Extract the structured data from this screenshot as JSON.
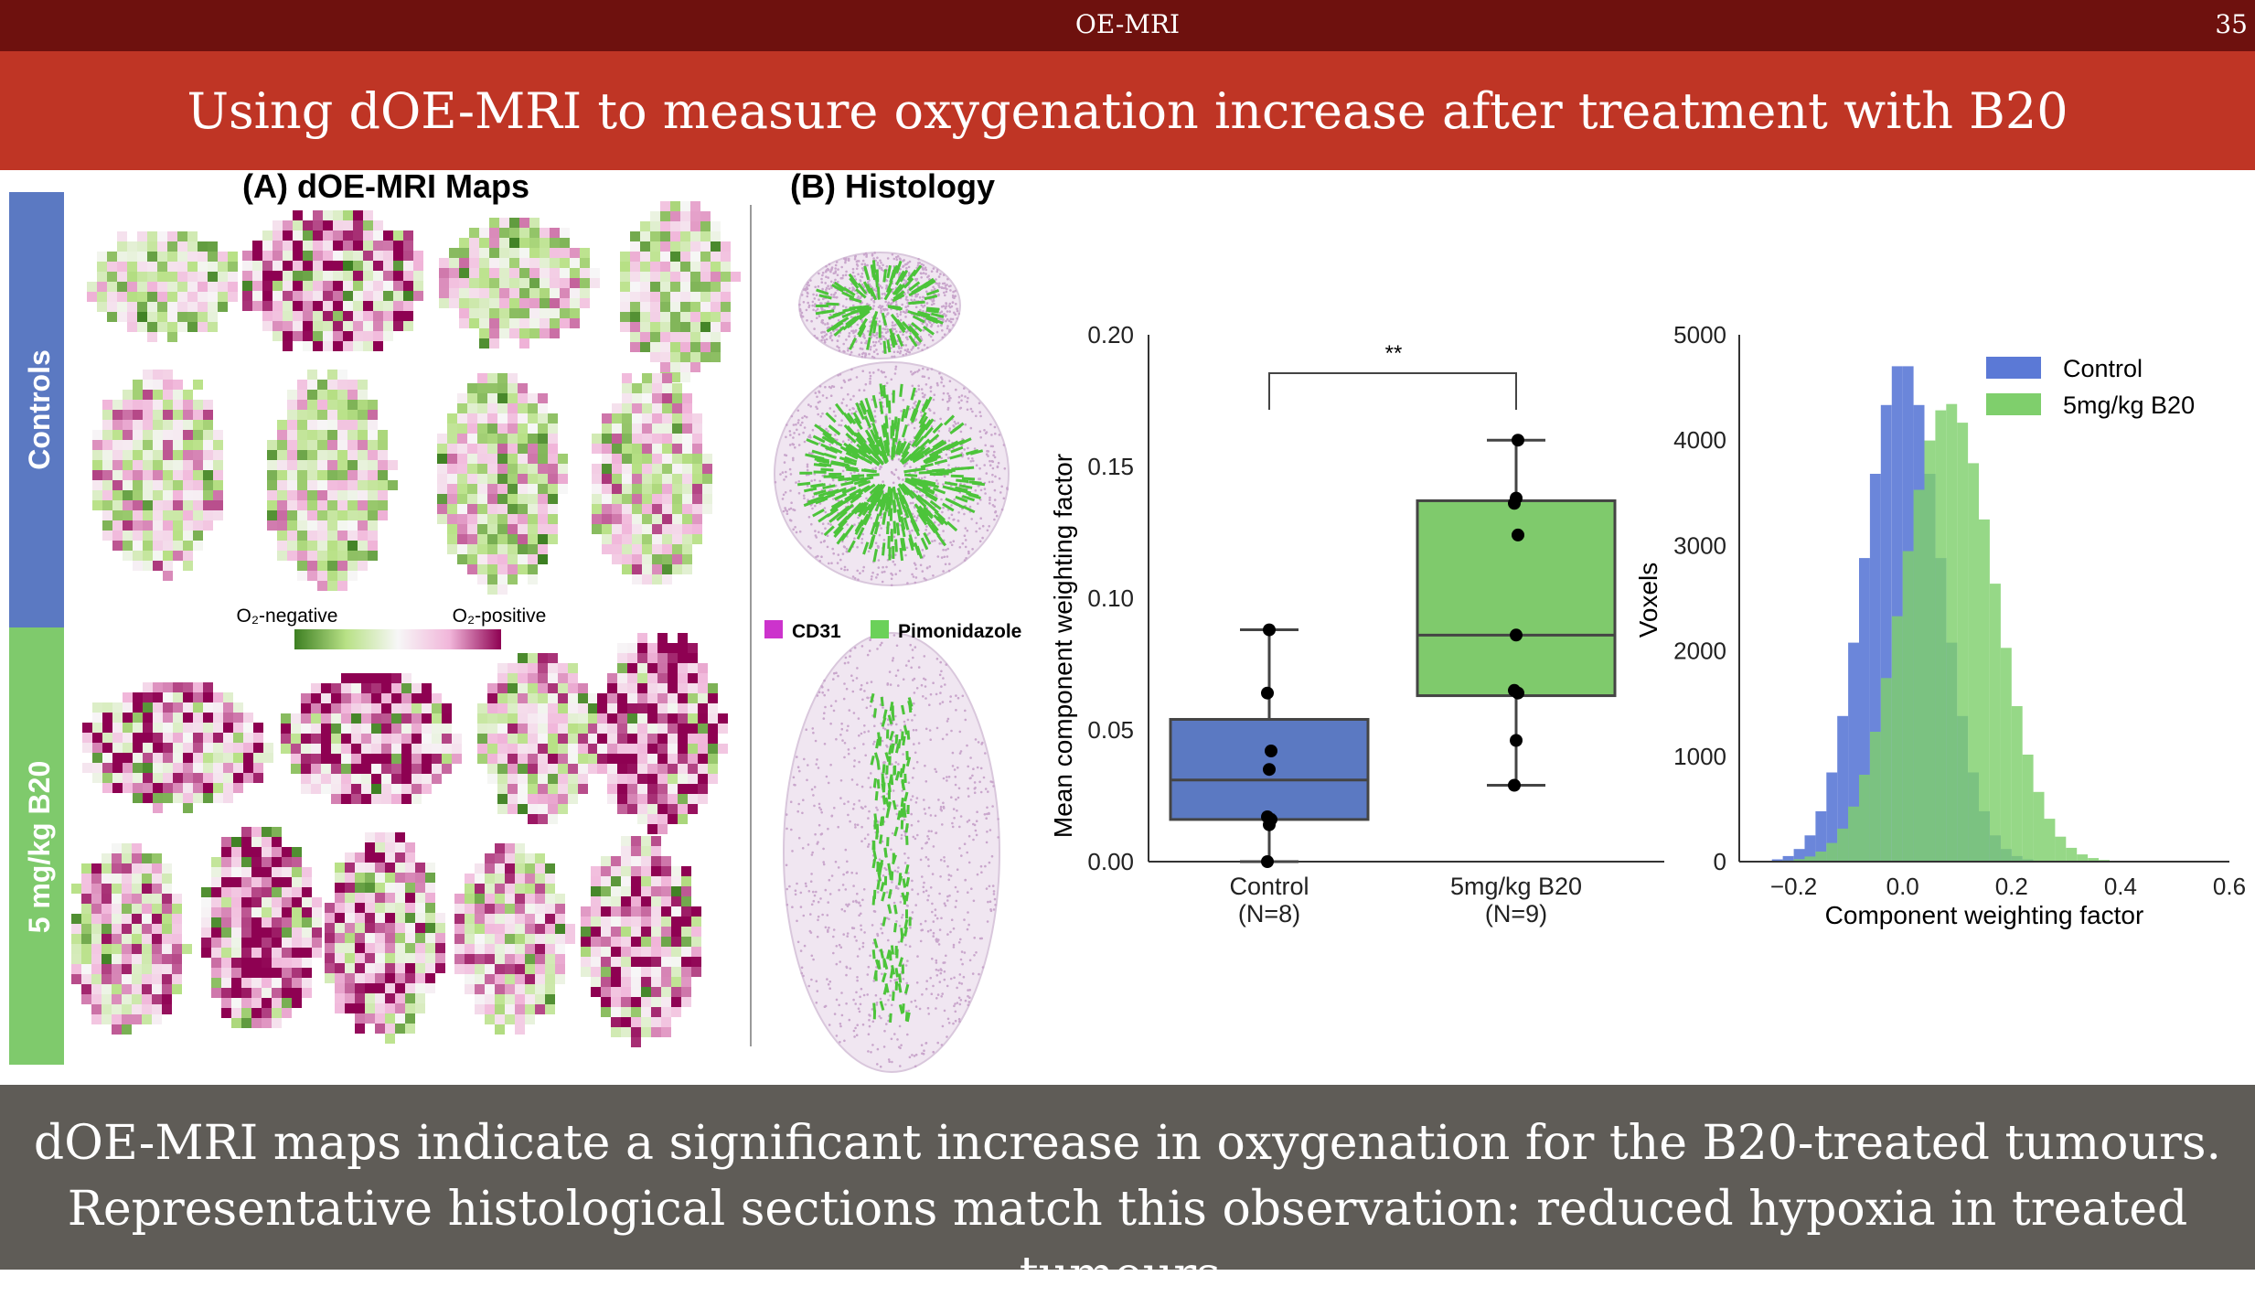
{
  "header": {
    "section": "OE-MRI",
    "page_number": "35"
  },
  "title": "Using dOE-MRI to measure oxygenation increase after treatment with B20",
  "panel_a": {
    "title": "(A) dOE-MRI Maps",
    "group_labels": [
      "Controls",
      "5 mg/kg B20"
    ],
    "colorbar": {
      "left_label": "O₂-negative",
      "right_label": "O₂-positive",
      "colors": [
        "#3d7f22",
        "#ffffff",
        "#8e0152"
      ]
    }
  },
  "panel_b": {
    "title": "(B) Histology",
    "legend": [
      {
        "label": "CD31",
        "color": "#cc33cc"
      },
      {
        "label": "Pimonidazole",
        "color": "#6bd159"
      }
    ]
  },
  "chart_data": [
    {
      "type": "box",
      "ylabel": "Mean component weighting factor",
      "ylim": [
        0.0,
        0.2
      ],
      "yticks": [
        "0.00",
        "0.05",
        "0.10",
        "0.15",
        "0.20"
      ],
      "significance": "**",
      "categories": [
        {
          "label": "Control",
          "n_label": "(N=8)",
          "color": "#5b79c2",
          "min": 0.0,
          "q1": 0.016,
          "median": 0.031,
          "q3": 0.054,
          "max": 0.088,
          "points": [
            0.0,
            0.014,
            0.016,
            0.017,
            0.035,
            0.042,
            0.064,
            0.088
          ]
        },
        {
          "label": "5mg/kg B20",
          "n_label": "(N=9)",
          "color": "#7fca6c",
          "min": 0.029,
          "q1": 0.063,
          "median": 0.086,
          "q3": 0.137,
          "max": 0.16,
          "points": [
            0.029,
            0.046,
            0.064,
            0.065,
            0.086,
            0.124,
            0.136,
            0.138,
            0.16
          ]
        }
      ]
    },
    {
      "type": "histogram",
      "xlabel": "Component weighting factor",
      "ylabel": "Voxels",
      "xlim": [
        -0.3,
        0.6
      ],
      "ylim": [
        0,
        5000
      ],
      "xticks": [
        "−0.2",
        "0.0",
        "0.2",
        "0.4",
        "0.6"
      ],
      "yticks": [
        "0",
        "1000",
        "2000",
        "3000",
        "4000",
        "5000"
      ],
      "bin_width": 0.02,
      "series": [
        {
          "name": "Control",
          "color": "#5b79d6",
          "mean": 0.0,
          "sd": 0.07,
          "peak": 4750
        },
        {
          "name": "5mg/kg B20",
          "color": "#7fcf6c",
          "mean": 0.085,
          "sd": 0.085,
          "peak": 4350
        }
      ]
    }
  ],
  "conclusion": {
    "line1": "dOE-MRI maps indicate a significant increase in oxygenation for the B20-treated tumours.",
    "line2": "Representative histological sections match this observation: reduced hypoxia in treated tumours."
  }
}
